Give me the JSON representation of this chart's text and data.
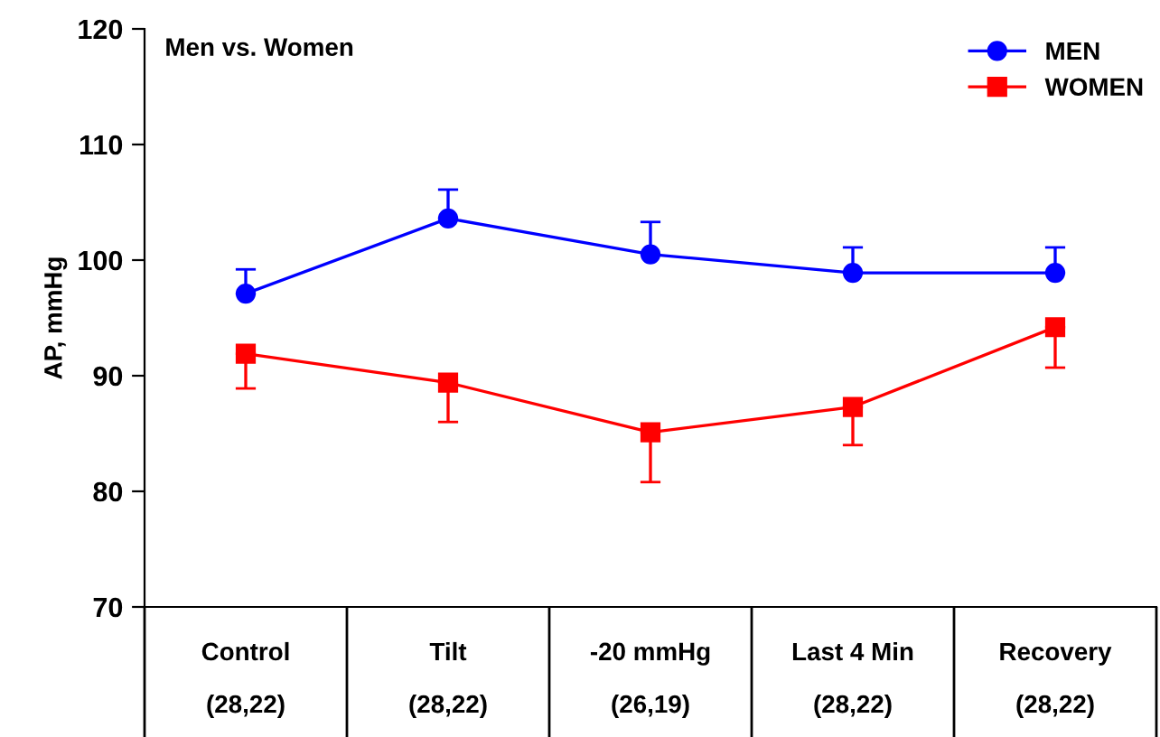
{
  "chart_data": {
    "type": "line",
    "title": "Men vs. Women",
    "ylabel": "AP, mmHg",
    "categories": [
      "Control\n(28,22)",
      "Tilt\n(28,22)",
      "-20 mmHg\n(26,19)",
      "Last 4 Min\n(28,22)",
      "Recovery\n(28,22)"
    ],
    "series": [
      {
        "name": "MEN",
        "color": "#0000ff",
        "marker": "circle",
        "values": [
          97.1,
          103.6,
          100.5,
          98.9,
          98.9
        ],
        "errors": [
          [
            97.1,
            99.2
          ],
          [
            103.6,
            106.1
          ],
          [
            100.5,
            103.3
          ],
          [
            98.9,
            101.1
          ],
          [
            98.9,
            101.1
          ]
        ]
      },
      {
        "name": "WOMEN",
        "color": "#ff0000",
        "marker": "square",
        "values": [
          91.9,
          89.4,
          85.1,
          87.3,
          94.2
        ],
        "errors": [
          [
            88.9,
            91.9
          ],
          [
            86.0,
            89.4
          ],
          [
            80.8,
            85.1
          ],
          [
            84.0,
            87.3
          ],
          [
            90.7,
            94.2
          ]
        ]
      }
    ],
    "ylim": [
      70,
      120
    ],
    "yticks": [
      70,
      80,
      90,
      100,
      110,
      120
    ],
    "grid": false,
    "legend": "top right",
    "line_style": "solid"
  }
}
